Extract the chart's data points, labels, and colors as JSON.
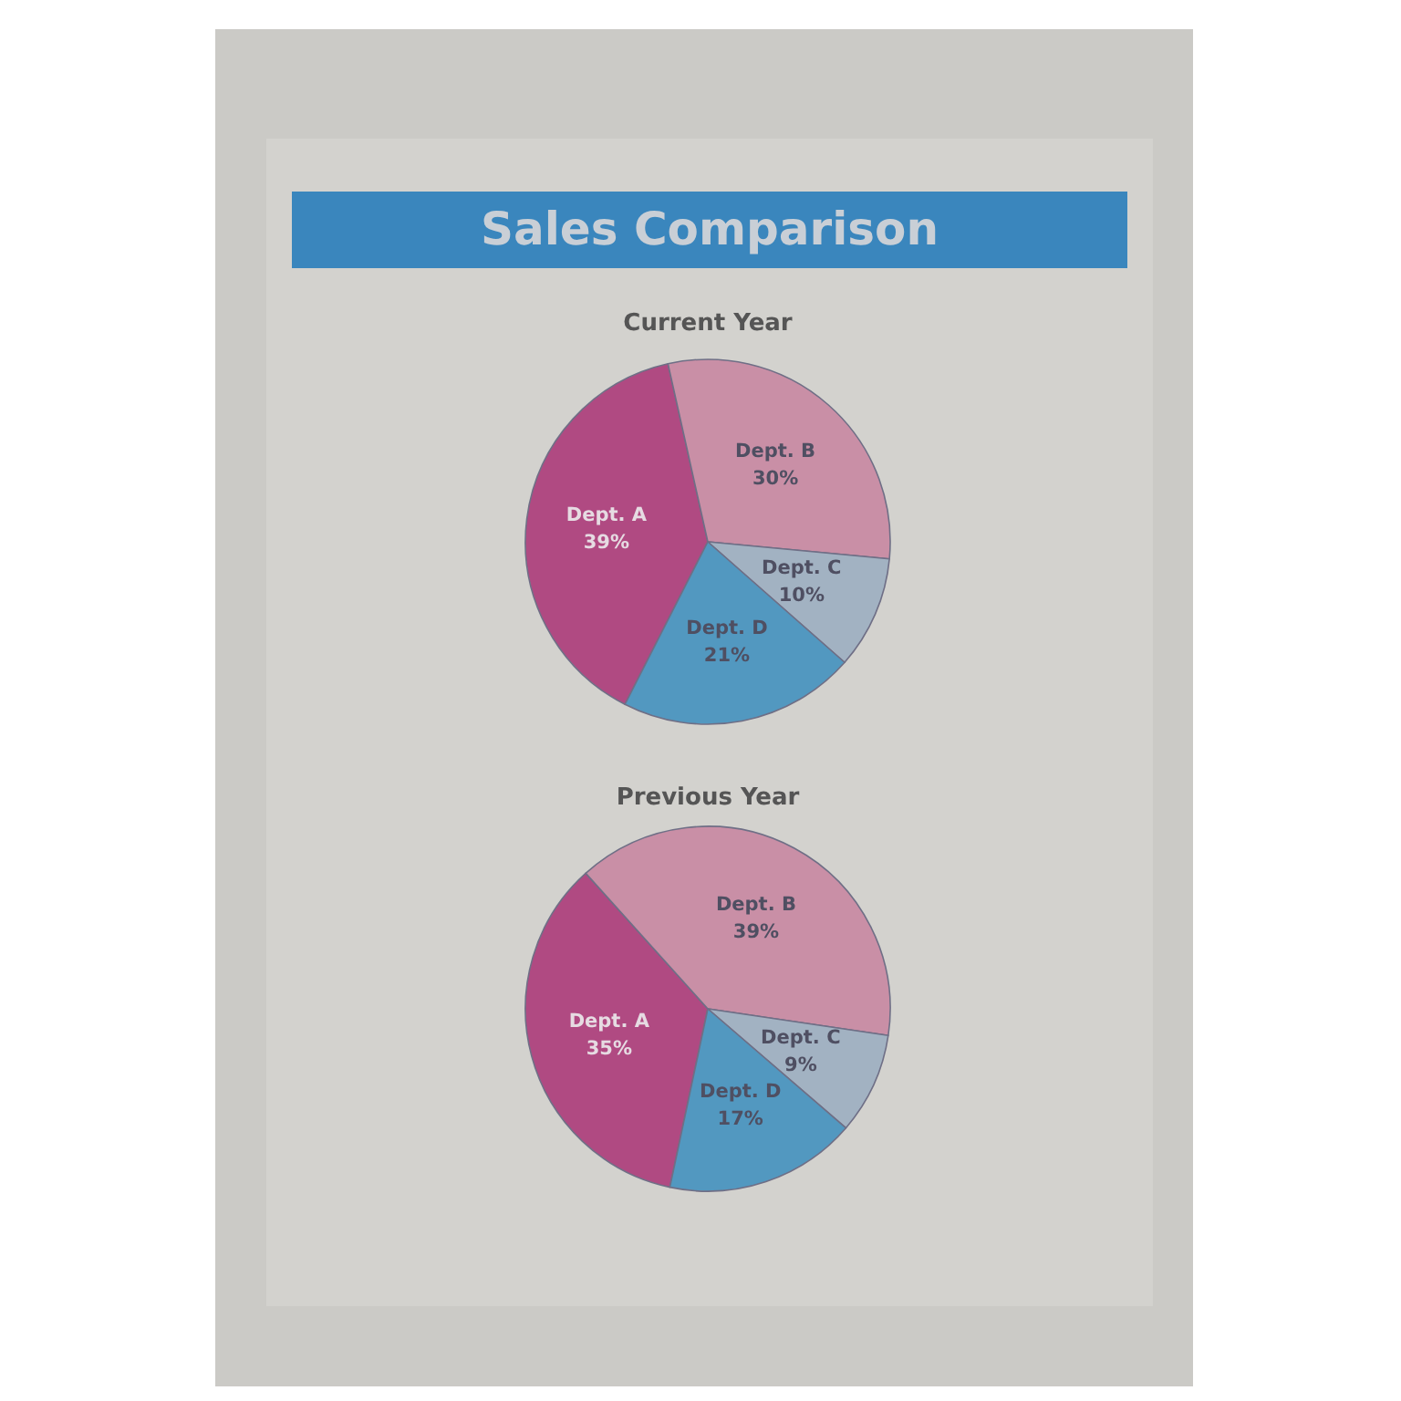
{
  "chart_data": [
    {
      "type": "pie",
      "title": "Sales Comparison",
      "subtitle": "Current Year",
      "categories": [
        "Dept. A",
        "Dept. B",
        "Dept. C",
        "Dept. D"
      ],
      "values": [
        39,
        30,
        10,
        21
      ],
      "value_labels": [
        "39%",
        "30%",
        "10%",
        "21%"
      ],
      "colors": [
        "#b04a82",
        "#c98fa6",
        "#a2b2c2",
        "#5298c0"
      ],
      "legend": false
    },
    {
      "type": "pie",
      "subtitle": "Previous Year",
      "categories": [
        "Dept. A",
        "Dept. B",
        "Dept. C",
        "Dept. D"
      ],
      "values": [
        35,
        39,
        9,
        17
      ],
      "value_labels": [
        "35%",
        "39%",
        "9%",
        "17%"
      ],
      "colors": [
        "#b04a82",
        "#c98fa6",
        "#a2b2c2",
        "#5298c0"
      ],
      "legend": false
    }
  ]
}
